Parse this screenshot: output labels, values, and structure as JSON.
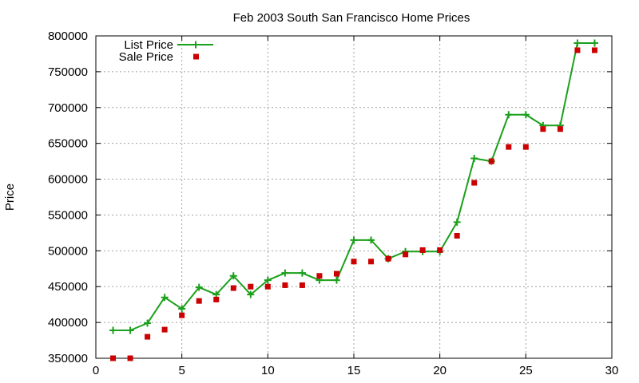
{
  "chart_data": {
    "type": "line",
    "title": "Feb 2003 South San Francisco Home Prices",
    "xlabel": "",
    "ylabel": "Price",
    "xlim": [
      0,
      30
    ],
    "ylim": [
      350000,
      800000
    ],
    "x_ticks": [
      0,
      5,
      10,
      15,
      20,
      25,
      30
    ],
    "y_ticks": [
      350000,
      400000,
      450000,
      500000,
      550000,
      600000,
      650000,
      700000,
      750000,
      800000
    ],
    "grid": true,
    "legend_position": "top-left",
    "series": [
      {
        "name": "List Price",
        "style": "linespoints",
        "color": "#1aa01a",
        "x": [
          1,
          2,
          3,
          4,
          5,
          6,
          7,
          8,
          9,
          10,
          11,
          12,
          13,
          14,
          15,
          16,
          17,
          18,
          19,
          20,
          21,
          22,
          23,
          24,
          25,
          26,
          27,
          28,
          29
        ],
        "y": [
          389000,
          389000,
          399000,
          435000,
          419000,
          449000,
          439000,
          465000,
          439000,
          459000,
          469000,
          469000,
          459000,
          459000,
          515000,
          515000,
          489000,
          499000,
          499000,
          499000,
          540000,
          629000,
          625000,
          690000,
          690000,
          675000,
          675000,
          790000,
          790000
        ]
      },
      {
        "name": "Sale Price",
        "style": "points",
        "color": "#cc0000",
        "x": [
          1,
          2,
          3,
          4,
          5,
          6,
          7,
          8,
          9,
          10,
          11,
          12,
          13,
          14,
          15,
          16,
          17,
          18,
          19,
          20,
          21,
          22,
          23,
          24,
          25,
          26,
          27,
          28,
          29
        ],
        "y": [
          350000,
          350000,
          380000,
          390000,
          410000,
          430000,
          432000,
          448000,
          450000,
          450000,
          452000,
          452000,
          465000,
          468000,
          485000,
          485000,
          489000,
          495000,
          501000,
          501000,
          521000,
          595000,
          625000,
          645000,
          645000,
          670000,
          670000,
          780000,
          780000
        ]
      }
    ]
  }
}
